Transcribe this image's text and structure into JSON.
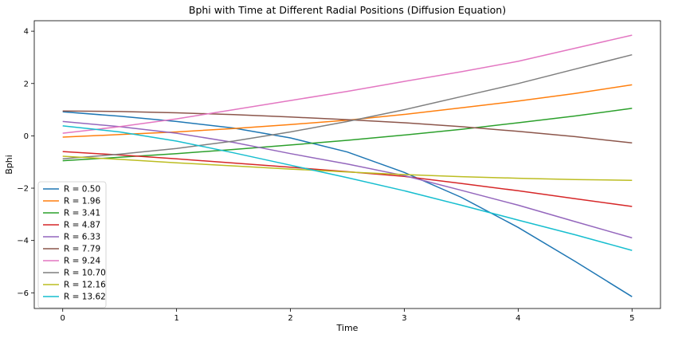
{
  "chart_data": {
    "type": "line",
    "title": "Bphi with Time at Different Radial Positions (Diffusion Equation)",
    "xlabel": "Time",
    "ylabel": "Bphi",
    "xlim": [
      -0.25,
      5.25
    ],
    "ylim": [
      -6.6,
      4.4
    ],
    "xticks": [
      0,
      1,
      2,
      3,
      4,
      5
    ],
    "yticks": [
      -6,
      -4,
      -2,
      0,
      2,
      4
    ],
    "grid": false,
    "legend": "lower-left",
    "x": [
      0,
      0.5,
      1,
      1.5,
      2,
      2.5,
      3,
      3.5,
      4,
      4.5,
      5
    ],
    "series": [
      {
        "name": "R = 0.50",
        "color": "#1f77b4",
        "values": [
          0.92,
          0.75,
          0.55,
          0.3,
          -0.08,
          -0.62,
          -1.4,
          -2.35,
          -3.5,
          -4.8,
          -6.15
        ]
      },
      {
        "name": "R = 1.96",
        "color": "#ff7f0e",
        "values": [
          -0.05,
          0.05,
          0.15,
          0.28,
          0.43,
          0.6,
          0.82,
          1.07,
          1.33,
          1.62,
          1.95
        ]
      },
      {
        "name": "R = 3.41",
        "color": "#2ca02c",
        "values": [
          -0.95,
          -0.82,
          -0.68,
          -0.52,
          -0.35,
          -0.17,
          0.03,
          0.25,
          0.5,
          0.76,
          1.05
        ]
      },
      {
        "name": "R = 4.87",
        "color": "#d62728",
        "values": [
          -0.6,
          -0.73,
          -0.88,
          -1.04,
          -1.2,
          -1.37,
          -1.55,
          -1.82,
          -2.1,
          -2.4,
          -2.7
        ]
      },
      {
        "name": "R = 6.33",
        "color": "#9467bd",
        "values": [
          0.55,
          0.35,
          0.1,
          -0.25,
          -0.68,
          -1.08,
          -1.52,
          -2.08,
          -2.65,
          -3.28,
          -3.9
        ]
      },
      {
        "name": "R = 7.79",
        "color": "#8c564b",
        "values": [
          0.95,
          0.93,
          0.88,
          0.81,
          0.72,
          0.62,
          0.5,
          0.35,
          0.17,
          -0.03,
          -0.27
        ]
      },
      {
        "name": "R = 9.24",
        "color": "#e377c2",
        "values": [
          0.1,
          0.35,
          0.65,
          1.0,
          1.35,
          1.7,
          2.08,
          2.45,
          2.85,
          3.35,
          3.85
        ]
      },
      {
        "name": "R = 10.70",
        "color": "#7f7f7f",
        "values": [
          -0.88,
          -0.7,
          -0.48,
          -0.2,
          0.15,
          0.55,
          1.0,
          1.5,
          2.0,
          2.55,
          3.1
        ]
      },
      {
        "name": "R = 12.16",
        "color": "#bcbd22",
        "values": [
          -0.78,
          -0.9,
          -1.03,
          -1.15,
          -1.27,
          -1.38,
          -1.48,
          -1.56,
          -1.62,
          -1.67,
          -1.7
        ]
      },
      {
        "name": "R = 13.62",
        "color": "#17becf",
        "values": [
          0.38,
          0.15,
          -0.2,
          -0.65,
          -1.12,
          -1.6,
          -2.1,
          -2.65,
          -3.22,
          -3.78,
          -4.38
        ]
      }
    ]
  }
}
